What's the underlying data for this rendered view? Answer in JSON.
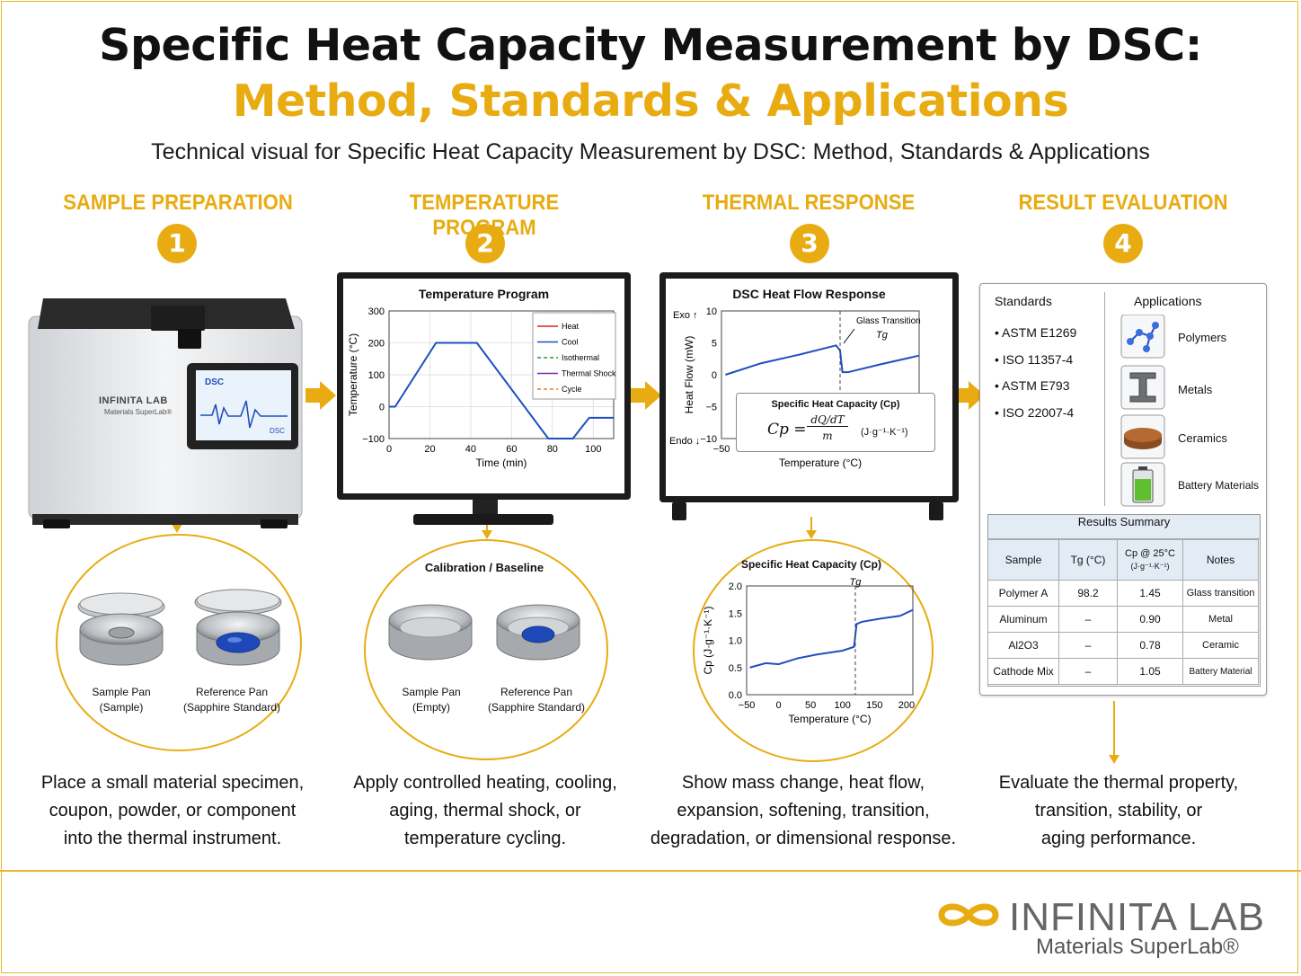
{
  "title_line1": "Specific Heat Capacity Measurement by DSC:",
  "title_line2": "Method, Standards & Applications",
  "subtitle": "Technical visual for Specific Heat Capacity Measurement by DSC: Method, Standards & Applications",
  "steps": [
    {
      "number": "1",
      "heading": "SAMPLE PREPARATION",
      "desc": [
        "Place a small material specimen,",
        "coupon, powder, or component",
        "into the thermal instrument."
      ]
    },
    {
      "number": "2",
      "heading": "TEMPERATURE PROGRAM",
      "desc": [
        "Apply controlled heating, cooling,",
        "aging, thermal shock, or",
        "temperature cycling."
      ]
    },
    {
      "number": "3",
      "heading": "THERMAL RESPONSE",
      "desc": [
        "Show mass change, heat flow,",
        "expansion, softening, transition,",
        "degradation, or dimensional response."
      ]
    },
    {
      "number": "4",
      "heading": "RESULT EVALUATION",
      "desc": [
        "Evaluate the thermal property,",
        "transition, stability, or",
        "aging performance."
      ]
    }
  ],
  "instrument": {
    "brand": "INFINITA LAB",
    "brand_sub": "Materials SuperLab®",
    "screen_label": "DSC",
    "screen_tag": "DSC"
  },
  "pans_1": {
    "sample_label": [
      "Sample Pan",
      "(Sample)"
    ],
    "reference_label": [
      "Reference Pan",
      "(Sapphire Standard)"
    ]
  },
  "pans_2": {
    "title": "Calibration / Baseline",
    "sample_label": [
      "Sample Pan",
      "(Empty)"
    ],
    "reference_label": [
      "Reference Pan",
      "(Sapphire Standard)"
    ]
  },
  "chart_data": [
    {
      "type": "line",
      "title": "Temperature Program",
      "xlabel": "Time (min)",
      "ylabel": "Temperature (°C)",
      "xlim": [
        0,
        110
      ],
      "ylim": [
        -100,
        300
      ],
      "xticks": [
        "0",
        "20",
        "40",
        "60",
        "80",
        "100"
      ],
      "yticks": [
        "300",
        "200",
        "100",
        "0",
        "−100"
      ],
      "legend": [
        "Heat",
        "Cool",
        "Isothermal",
        "Thermal Shock",
        "Cycle"
      ],
      "legend_colors": [
        "#e02020",
        "#1f4fbf",
        "#2a9a2a",
        "#7a2aa8",
        "#f07a1a"
      ],
      "legend_position": "top-right",
      "series": [
        {
          "name": "Cool",
          "x": [
            0,
            3,
            23,
            43,
            78,
            90,
            98,
            110
          ],
          "y": [
            0,
            0,
            200,
            200,
            -100,
            -100,
            -35,
            -35
          ]
        }
      ]
    },
    {
      "type": "line",
      "title": "DSC Heat Flow Response",
      "xlabel": "Temperature (°C)",
      "ylabel": "Heat Flow (mW)",
      "xlim": [
        -50,
        200
      ],
      "ylim": [
        -10,
        10
      ],
      "xticks": [
        "−50",
        "0",
        "50",
        "100",
        "150",
        "200"
      ],
      "yticks": [
        "10",
        "5",
        "0",
        "−5",
        "−10"
      ],
      "exo_label": "Exo ↑",
      "endo_label": "Endo ↓",
      "annotation": "Glass Transition",
      "annotation_symbol": "Tg",
      "series": [
        {
          "x": [
            -45,
            0,
            50,
            95,
            100,
            103,
            110,
            150,
            200
          ],
          "y": [
            0,
            1.8,
            3.2,
            4.6,
            3.8,
            0.4,
            0.4,
            1.6,
            3.0
          ]
        }
      ]
    },
    {
      "type": "line",
      "title": "Specific Heat Capacity (Cp)",
      "xlabel": "Temperature (°C)",
      "ylabel": "Cp (J·g⁻¹·K⁻¹)",
      "xlim": [
        -50,
        210
      ],
      "ylim": [
        0,
        2.0
      ],
      "xticks": [
        "−50",
        "0",
        "50",
        "100",
        "150",
        "200"
      ],
      "yticks": [
        "2.0",
        "1.5",
        "1.0",
        "0.5",
        "0.0"
      ],
      "annotation_symbol": "Tg",
      "series": [
        {
          "x": [
            -45,
            -20,
            0,
            30,
            60,
            100,
            118,
            122,
            130,
            160,
            190,
            210
          ],
          "y": [
            0.5,
            0.58,
            0.56,
            0.67,
            0.74,
            0.81,
            0.88,
            1.3,
            1.34,
            1.4,
            1.45,
            1.56
          ]
        }
      ]
    }
  ],
  "formula": {
    "title": "Specific Heat Capacity (Cp)",
    "lhs": "Cp =",
    "num": "dQ/dT",
    "den": "m",
    "units": "(J·g⁻¹·K⁻¹)"
  },
  "standards": {
    "heading": "Standards",
    "items": [
      "ASTM E1269",
      "ISO 11357-4",
      "ASTM E793",
      "ISO 22007-4"
    ]
  },
  "applications": {
    "heading": "Applications",
    "items": [
      "Polymers",
      "Metals",
      "Ceramics",
      "Battery Materials"
    ]
  },
  "results": {
    "title": "Results Summary",
    "headers": [
      "Sample",
      "Tg (°C)",
      "Cp @ 25°C",
      "(J·g⁻¹·K⁻¹)",
      "Notes"
    ],
    "rows": [
      [
        "Polymer A",
        "98.2",
        "1.45",
        "Glass transition"
      ],
      [
        "Aluminum",
        "–",
        "0.90",
        "Metal"
      ],
      [
        "Al2O3",
        "–",
        "0.78",
        "Ceramic"
      ],
      [
        "Cathode Mix",
        "–",
        "1.05",
        "Battery Material"
      ]
    ]
  },
  "footer": {
    "logo": "INFINITA LAB",
    "tagline": "Materials SuperLab®"
  },
  "colors": {
    "accent": "#e8ac12",
    "line": "#1f4fbf"
  }
}
